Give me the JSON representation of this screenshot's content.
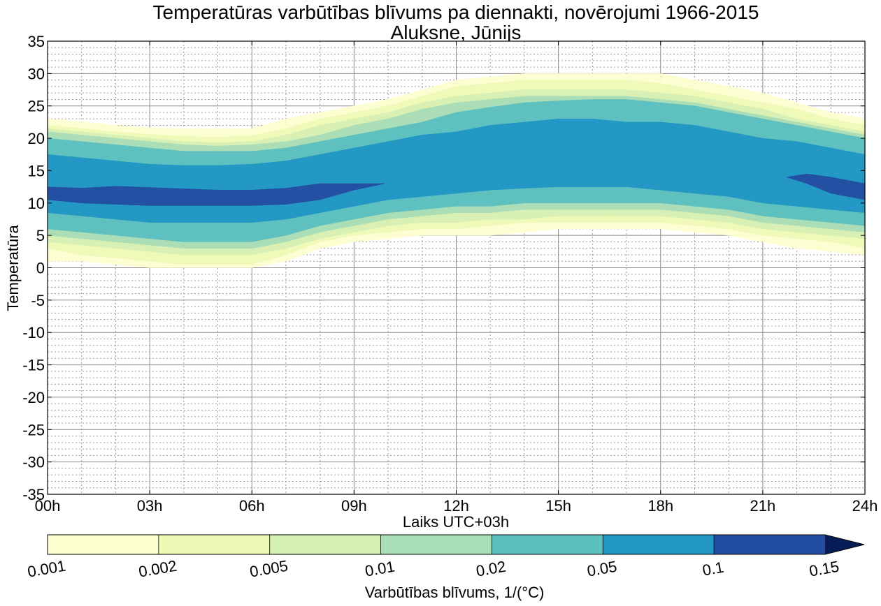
{
  "chart_data": {
    "type": "contour",
    "title": "Temperatūras varbūtības blīvums pa diennakti, novērojumi 1966-2015",
    "subtitle": "Aluksne, Jūnijs",
    "xlabel": "Laiks UTC+03h",
    "ylabel": "Temperatūra",
    "x_ticks": [
      "00h",
      "03h",
      "06h",
      "09h",
      "12h",
      "15h",
      "18h",
      "21h",
      "24h"
    ],
    "x_range_hours": [
      0,
      24
    ],
    "y_ticks": [
      "35",
      "30",
      "25",
      "20",
      "15",
      "10",
      "5",
      "0",
      "-5",
      "-10",
      "-15",
      "-20",
      "-25",
      "-30",
      "-35"
    ],
    "ylim": [
      -35,
      35
    ],
    "grid": true,
    "colorbar": {
      "label": "Varbūtības blīvums, 1/(°C)",
      "levels": [
        "0.001",
        "0.002",
        "0.005",
        "0.01",
        "0.02",
        "0.05",
        "0.1",
        "0.15"
      ],
      "colors": [
        "#fdfed0",
        "#eef9b6",
        "#d6efb3",
        "#a9ddb7",
        "#5cbfc0",
        "#2196c4",
        "#234da0",
        "#081d58"
      ],
      "extend": "max"
    },
    "contour_bands": [
      {
        "level": "0.001",
        "color": "#fdfed0",
        "x": [
          0,
          1,
          2,
          3,
          4,
          5,
          6,
          7,
          8,
          9,
          10,
          11,
          12,
          13,
          14,
          15,
          16,
          17,
          18,
          19,
          20,
          21,
          22,
          23,
          24
        ],
        "upper": [
          23.0,
          22.6,
          22.0,
          21.6,
          21.5,
          21.5,
          21.5,
          23.0,
          24.0,
          25.0,
          26.0,
          27.5,
          29.0,
          29.5,
          30.0,
          30.0,
          30.0,
          30.0,
          30.0,
          29.0,
          28.0,
          27.0,
          25.5,
          24.0,
          23.0
        ],
        "lower": [
          1.0,
          1.0,
          0.5,
          0.0,
          0.0,
          0.0,
          0.0,
          1.0,
          3.0,
          4.0,
          4.5,
          5.0,
          5.0,
          5.0,
          5.5,
          6.0,
          6.0,
          6.0,
          6.0,
          5.5,
          5.0,
          4.0,
          3.0,
          2.5,
          2.0
        ]
      },
      {
        "level": "0.002",
        "color": "#eef9b6",
        "x": [
          0,
          1,
          2,
          3,
          4,
          5,
          6,
          7,
          8,
          9,
          10,
          11,
          12,
          13,
          14,
          15,
          16,
          17,
          18,
          19,
          20,
          21,
          22,
          23,
          24
        ],
        "upper": [
          22.0,
          21.5,
          21.0,
          20.6,
          20.3,
          20.2,
          20.4,
          21.5,
          23.0,
          24.0,
          25.0,
          26.5,
          28.0,
          28.5,
          29.0,
          29.0,
          29.0,
          29.0,
          28.5,
          27.5,
          26.5,
          25.5,
          24.5,
          23.0,
          22.0
        ],
        "lower": [
          3.0,
          2.0,
          1.5,
          1.0,
          0.5,
          0.5,
          0.5,
          2.0,
          4.0,
          5.0,
          5.5,
          6.0,
          6.0,
          6.5,
          7.0,
          7.0,
          7.0,
          7.0,
          7.0,
          6.5,
          6.0,
          5.0,
          4.5,
          4.0,
          3.0
        ]
      },
      {
        "level": "0.005",
        "color": "#d6efb3",
        "x": [
          0,
          1,
          2,
          3,
          4,
          5,
          6,
          7,
          8,
          9,
          10,
          11,
          12,
          13,
          14,
          15,
          16,
          17,
          18,
          19,
          20,
          21,
          22,
          23,
          24
        ],
        "upper": [
          21.5,
          21.0,
          20.5,
          20.0,
          19.5,
          19.3,
          19.5,
          20.5,
          22.0,
          23.0,
          24.0,
          25.5,
          26.5,
          27.0,
          27.5,
          27.5,
          27.5,
          27.5,
          27.0,
          26.5,
          25.5,
          24.5,
          23.0,
          22.0,
          21.0
        ],
        "lower": [
          4.0,
          3.5,
          3.0,
          2.5,
          2.0,
          2.0,
          2.0,
          3.0,
          4.5,
          5.5,
          6.5,
          7.0,
          7.0,
          7.5,
          7.5,
          8.0,
          8.0,
          8.0,
          8.0,
          7.5,
          7.0,
          6.0,
          5.5,
          5.0,
          4.5
        ]
      },
      {
        "level": "0.01",
        "color": "#a9ddb7",
        "x": [
          0,
          1,
          2,
          3,
          4,
          5,
          6,
          7,
          8,
          9,
          10,
          11,
          12,
          13,
          14,
          15,
          16,
          17,
          18,
          19,
          20,
          21,
          22,
          23,
          24
        ],
        "upper": [
          21.0,
          20.5,
          20.0,
          19.5,
          19.0,
          18.8,
          19.0,
          19.5,
          20.5,
          22.0,
          23.0,
          24.5,
          25.5,
          26.0,
          26.5,
          26.5,
          26.5,
          26.5,
          26.0,
          25.5,
          24.5,
          23.5,
          22.5,
          21.5,
          20.5
        ],
        "lower": [
          5.0,
          4.5,
          4.0,
          3.5,
          3.0,
          3.0,
          3.0,
          4.0,
          5.5,
          6.5,
          7.5,
          8.0,
          8.5,
          8.5,
          9.0,
          9.0,
          9.0,
          9.0,
          9.0,
          8.5,
          8.0,
          7.0,
          6.5,
          6.0,
          5.5
        ]
      },
      {
        "level": "0.02",
        "color": "#5cbfc0",
        "x": [
          0,
          1,
          2,
          3,
          4,
          5,
          6,
          7,
          8,
          9,
          10,
          11,
          12,
          13,
          14,
          15,
          16,
          17,
          18,
          19,
          20,
          21,
          22,
          23,
          24
        ],
        "upper": [
          20.0,
          19.5,
          19.0,
          18.5,
          18.0,
          18.0,
          18.0,
          18.5,
          19.5,
          20.5,
          21.5,
          22.5,
          24.0,
          24.8,
          25.5,
          25.8,
          26.0,
          26.0,
          25.5,
          25.0,
          24.0,
          23.0,
          22.0,
          21.0,
          20.0
        ],
        "lower": [
          6.0,
          5.5,
          5.0,
          4.5,
          4.0,
          4.0,
          4.0,
          5.0,
          6.5,
          7.5,
          8.5,
          9.0,
          9.5,
          9.5,
          10.0,
          10.0,
          10.0,
          10.0,
          10.0,
          9.5,
          9.0,
          8.0,
          7.5,
          7.0,
          6.5
        ]
      },
      {
        "level": "0.05",
        "color": "#2196c4",
        "x": [
          0,
          1,
          2,
          3,
          4,
          5,
          6,
          7,
          8,
          9,
          10,
          11,
          12,
          13,
          14,
          15,
          16,
          17,
          18,
          19,
          20,
          21,
          22,
          23,
          24
        ],
        "upper": [
          17.5,
          17.0,
          16.5,
          16.0,
          15.8,
          15.8,
          16.0,
          16.5,
          17.5,
          18.5,
          19.5,
          20.5,
          21.0,
          22.0,
          22.5,
          23.0,
          23.0,
          22.5,
          22.5,
          22.0,
          21.0,
          20.0,
          19.5,
          18.5,
          17.5
        ],
        "lower": [
          8.5,
          8.0,
          7.5,
          7.0,
          7.0,
          7.0,
          7.0,
          7.5,
          8.5,
          9.5,
          10.5,
          11.0,
          11.5,
          12.0,
          12.3,
          12.5,
          12.5,
          12.5,
          12.0,
          11.5,
          11.0,
          10.0,
          9.5,
          9.0,
          8.5
        ]
      },
      {
        "level": "0.1",
        "color": "#234da0",
        "x": [
          0,
          1,
          2,
          3,
          4,
          5,
          6,
          7,
          8,
          9,
          9.9
        ],
        "upper": [
          12.5,
          12.3,
          12.6,
          12.4,
          12.2,
          12.0,
          12.0,
          12.3,
          13.0,
          13.0,
          13.0
        ],
        "lower": [
          10.5,
          10.0,
          9.8,
          9.6,
          9.6,
          9.6,
          9.6,
          9.8,
          10.5,
          12.0,
          13.0
        ]
      },
      {
        "level": "0.1",
        "color": "#234da0",
        "x": [
          21.7,
          22.3,
          23,
          24
        ],
        "upper": [
          14.0,
          14.5,
          14.0,
          13.0
        ],
        "lower": [
          14.0,
          13.0,
          11.5,
          10.5
        ]
      }
    ]
  }
}
